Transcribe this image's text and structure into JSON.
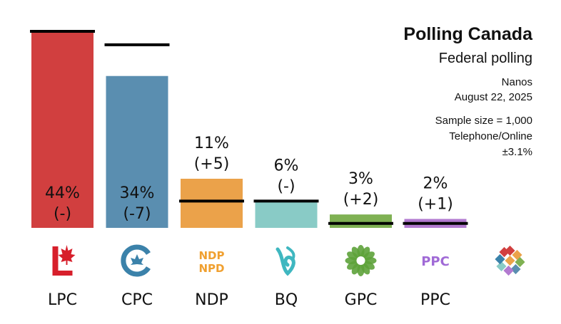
{
  "header": {
    "title": "Polling Canada",
    "subtitle": "Federal polling",
    "pollster": "Nanos",
    "date": "August 22, 2025",
    "sample": "Sample size = 1,000",
    "method": "Telephone/Online",
    "margin": "±3.1%"
  },
  "chart_data": {
    "type": "bar",
    "categories": [
      "LPC",
      "CPC",
      "NDP",
      "BQ",
      "GPC",
      "PPC"
    ],
    "values": [
      44,
      34,
      11,
      6,
      3,
      2
    ],
    "value_labels": [
      "44%",
      "34%",
      "11%",
      "6%",
      "3%",
      "2%"
    ],
    "change_labels": [
      "(-)",
      "(-7)",
      "(+5)",
      "(-)",
      "(+2)",
      "(+1)"
    ],
    "previous_values": [
      44,
      41,
      6,
      6,
      1,
      1
    ],
    "colors": [
      "#d13f3f",
      "#5a8eb0",
      "#eba24a",
      "#89cbc6",
      "#7fb153",
      "#b27ad0"
    ],
    "ylim": [
      0,
      44
    ],
    "logos": {
      "lpc": "maple-leaf-L-icon",
      "cpc": "cpc-maple-leaf-C-icon",
      "ndp": "NDP\nNPD",
      "bq": "bq-fleur-icon",
      "gpc": "gpc-flower-icon",
      "ppc": "PPC",
      "other": "polling-canada-logo-icon"
    }
  }
}
